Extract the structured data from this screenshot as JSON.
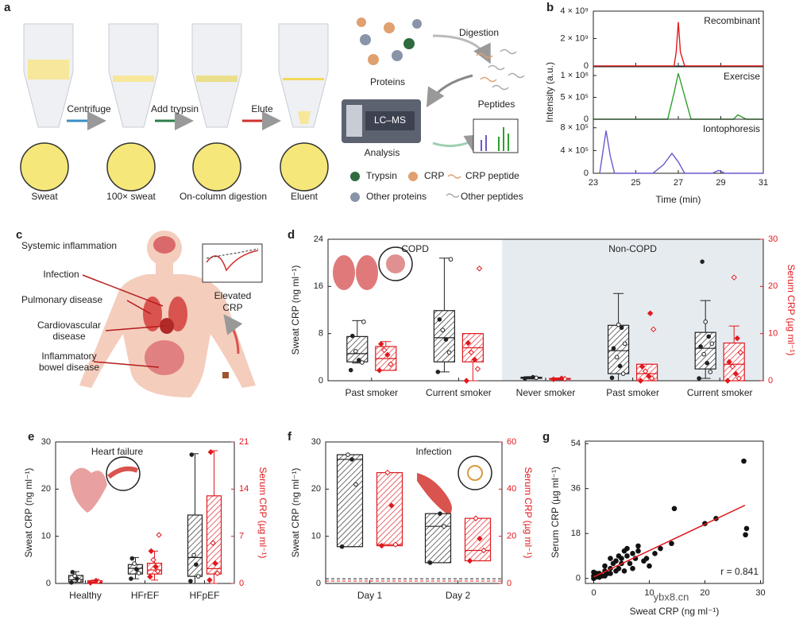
{
  "panel_a": {
    "label": "a",
    "steps": [
      "Centrifuge",
      "Add trypsin",
      "Elute"
    ],
    "samples": [
      "Sweat",
      "100× sweat",
      "On-column digestion",
      "Eluent"
    ],
    "cycle": {
      "digestion": "Digestion",
      "proteins": "Proteins",
      "peptides": "Peptides",
      "instrument": "LC–MS",
      "analysis": "Analysis"
    },
    "legend": [
      "Trypsin",
      "CRP",
      "CRP peptide",
      "Other proteins",
      "Other peptides"
    ]
  },
  "panel_c": {
    "label": "c",
    "title": "Systemic inflammation",
    "conditions": [
      [
        "Infection"
      ],
      [
        "Pulmonary disease"
      ],
      [
        "Cardiovascular",
        "disease"
      ],
      [
        "Inflammatory",
        "bowel disease"
      ]
    ],
    "annotation": [
      "Elevated",
      "CRP"
    ]
  },
  "chart_data": [
    {
      "panel": "b",
      "type": "line",
      "xlabel": "Time (min)",
      "ylabel": "Intensity (a.u.)",
      "xlim": [
        23,
        31
      ],
      "xticks": [
        23,
        25,
        27,
        29,
        31
      ],
      "subplots": [
        {
          "annotation": "Recombinant",
          "color": "#e41a1c",
          "ylim": [
            0,
            4000000000
          ],
          "yticks": [
            0,
            {
              "value": 2000000000,
              "label": "2 × 10⁹"
            },
            {
              "value": 4000000000,
              "label": "4 × 10⁹"
            }
          ],
          "x": [
            23,
            26.8,
            26.9,
            27.0,
            27.1,
            27.3,
            31
          ],
          "values": [
            0,
            0,
            1000000000,
            3200000000,
            1000000000,
            0,
            0
          ]
        },
        {
          "annotation": "Exercise",
          "color": "#2ca02c",
          "ylim": [
            0,
            1200000
          ],
          "yticks": [
            0,
            {
              "value": 500000,
              "label": "5 × 10⁵"
            },
            {
              "value": 1000000,
              "label": "1 × 10⁶"
            }
          ],
          "x": [
            23,
            26.5,
            26.8,
            27.0,
            27.2,
            27.6,
            29.6,
            29.8,
            30.2,
            31
          ],
          "values": [
            0,
            0,
            600000,
            1050000,
            700000,
            0,
            0,
            100000,
            0,
            0
          ]
        },
        {
          "annotation": "Iontophoresis",
          "color": "#6a5acd",
          "ylim": [
            0,
            950000
          ],
          "yticks": [
            0,
            {
              "value": 400000,
              "label": "4 × 10⁵"
            },
            {
              "value": 800000,
              "label": "8 × 10⁵"
            }
          ],
          "x": [
            23.3,
            23.5,
            23.6,
            23.8,
            24.0,
            25.8,
            26.3,
            26.7,
            27.0,
            27.3,
            28.6,
            28.9,
            29.2,
            31
          ],
          "values": [
            0,
            500000,
            750000,
            300000,
            0,
            0,
            150000,
            350000,
            200000,
            0,
            0,
            50000,
            0,
            0
          ]
        }
      ]
    },
    {
      "panel": "d",
      "type": "box",
      "ylabel": "Sweat CRP (ng ml⁻¹)",
      "y2label": "Serum CRP (µg ml⁻¹)",
      "ylim": [
        0,
        24
      ],
      "yticks": [
        0,
        8,
        16,
        24
      ],
      "y2lim": [
        0,
        30
      ],
      "y2ticks": [
        0,
        10,
        20,
        30
      ],
      "categories": [
        "Past smoker",
        "Current smoker",
        "Never smoker",
        "Past smoker",
        "Current smoker"
      ],
      "groups": [
        {
          "label": "COPD",
          "first": 0,
          "last": 1
        },
        {
          "label": "Non-COPD",
          "first": 2,
          "last": 4,
          "shaded": true
        }
      ],
      "series": [
        {
          "color": "#222222",
          "marker": "circle",
          "boxes": [
            {
              "min": 3.0,
              "q1": 3.2,
              "median": 4.6,
              "q3": 7.5,
              "max": 10.2,
              "points": [
                1.8,
                3.1,
                3.5,
                5.0,
                7.6,
                10.0
              ]
            },
            {
              "min": 1.5,
              "q1": 3.2,
              "median": 7.3,
              "q3": 11.9,
              "max": 20.8,
              "points": [
                1.5,
                4.8,
                7.0,
                8.6,
                10.4,
                20.6
              ]
            },
            {
              "min": 0.3,
              "q1": 0.4,
              "median": 0.5,
              "q3": 0.6,
              "max": 0.7,
              "points": [
                0.4,
                0.5,
                0.6
              ]
            },
            {
              "min": 0,
              "q1": 1.2,
              "median": 5.1,
              "q3": 9.4,
              "max": 14.8,
              "points": [
                0.5,
                1.2,
                2.5,
                4.0,
                5.5,
                6.3,
                9.0,
                9.5
              ]
            },
            {
              "min": 0.4,
              "q1": 2.0,
              "median": 5.5,
              "q3": 8.2,
              "max": 13.6,
              "points": [
                0.4,
                1.5,
                3.0,
                4.5,
                5.8,
                6.3,
                7.5,
                10.0,
                20.2
              ]
            }
          ]
        },
        {
          "color": "#e0191e",
          "axis": "y2",
          "marker": "diamond",
          "boxes": [
            {
              "min": 2.2,
              "q1": 2.2,
              "median": 4.7,
              "q3": 7.25,
              "max": 8.3,
              "points": [
                2.2,
                3.5,
                5.5,
                6.5,
                7.8
              ]
            },
            {
              "min": 0,
              "q1": 4,
              "median": 7,
              "q3": 10,
              "max": 10,
              "points": [
                0,
                2.5,
                4.5,
                6,
                8,
                23.8
              ]
            },
            {
              "min": 0.2,
              "q1": 0.3,
              "median": 0.4,
              "q3": 0.5,
              "max": 0.6,
              "points": [
                0.3,
                0.4,
                0.5
              ]
            },
            {
              "min": 0,
              "q1": 0,
              "median": 1.5,
              "q3": 3.5,
              "max": 3.5,
              "points": [
                0,
                0.5,
                1,
                2,
                3,
                10.9,
                14.3
              ]
            },
            {
              "min": 0,
              "q1": 0,
              "median": 3.5,
              "q3": 8,
              "max": 11.6,
              "points": [
                0,
                0.5,
                1.5,
                3,
                4,
                6,
                9,
                21.9
              ]
            }
          ]
        }
      ]
    },
    {
      "panel": "e",
      "type": "box",
      "annotation": "Heart failure",
      "ylabel": "Sweat CRP (ng ml⁻¹)",
      "y2label": "Serum CRP (µg ml⁻¹)",
      "ylim": [
        0,
        30
      ],
      "yticks": [
        0,
        10,
        20,
        30
      ],
      "y2lim": [
        0,
        21
      ],
      "y2ticks": [
        0,
        7,
        14,
        21
      ],
      "categories": [
        "Healthy",
        "HFrEF",
        "HFpEF"
      ],
      "series": [
        {
          "color": "#222222",
          "marker": "circle",
          "boxes": [
            {
              "min": 0,
              "q1": 0.3,
              "median": 0.8,
              "q3": 1.7,
              "max": 2.5,
              "points": [
                0.2,
                0.6,
                1.0,
                1.6,
                2.4
              ]
            },
            {
              "min": 1.0,
              "q1": 2.0,
              "median": 3.2,
              "q3": 4.0,
              "max": 5.5,
              "points": [
                1.0,
                2.2,
                3.0,
                4.2,
                5.3
              ]
            },
            {
              "min": 0,
              "q1": 1.5,
              "median": 5.5,
              "q3": 14.5,
              "max": 27.5,
              "points": [
                0.5,
                1.5,
                4,
                6,
                27.3
              ]
            }
          ]
        },
        {
          "color": "#e0191e",
          "axis": "y2",
          "marker": "diamond",
          "boxes": [
            {
              "min": 0,
              "q1": 0.1,
              "median": 0.2,
              "q3": 0.4,
              "max": 0.5,
              "points": [
                0.1,
                0.3,
                0.4
              ]
            },
            {
              "min": 0.5,
              "q1": 1.4,
              "median": 2.0,
              "q3": 3.0,
              "max": 4.8,
              "points": [
                1.0,
                1.8,
                2.5,
                3.5,
                4.8,
                7.2
              ]
            },
            {
              "min": 0,
              "q1": 1.4,
              "median": 2.2,
              "q3": 13,
              "max": 19.7,
              "points": [
                0.5,
                1.5,
                3.0,
                6.0,
                19.5
              ]
            }
          ]
        }
      ]
    },
    {
      "panel": "f",
      "type": "box",
      "annotation": "Infection",
      "ylabel": "Sweat CRP (ng ml⁻¹)",
      "y2label": "Serum CRP (µg ml⁻¹)",
      "ylim": [
        0,
        30
      ],
      "yticks": [
        0,
        10,
        20,
        30
      ],
      "y2lim": [
        0,
        60
      ],
      "y2ticks": [
        0,
        20,
        40,
        60
      ],
      "categories": [
        "Day 1",
        "Day 2"
      ],
      "reference_lines": [
        {
          "value": 1,
          "color": "#222222"
        },
        {
          "value": 1,
          "axis": "y2",
          "color": "#e0191e"
        }
      ],
      "series": [
        {
          "color": "#222222",
          "marker": "circle",
          "boxes": [
            {
              "min": 7.8,
              "q1": 7.8,
              "median": 26.3,
              "q3": 27.3,
              "max": 27.3,
              "points": [
                7.8,
                21,
                26.3,
                27.3
              ]
            },
            {
              "min": 4.4,
              "q1": 4.4,
              "median": 12.1,
              "q3": 14.8,
              "max": 14.8,
              "points": [
                4.4,
                12.1,
                14.8
              ]
            }
          ]
        },
        {
          "color": "#e0191e",
          "axis": "y2",
          "marker": "diamond",
          "boxes": [
            {
              "min": 16,
              "q1": 16,
              "median": 16.5,
              "q3": 47,
              "max": 47,
              "points": [
                16,
                16.5,
                33,
                47
              ]
            },
            {
              "min": 9.6,
              "q1": 9.6,
              "median": 14,
              "q3": 27.6,
              "max": 27.6,
              "points": [
                9.6,
                14,
                19,
                27.6
              ]
            }
          ]
        }
      ]
    },
    {
      "panel": "g",
      "type": "scatter",
      "xlabel": "Sweat CRP (ng ml⁻¹)",
      "ylabel": "Serum CRP (µg ml⁻¹)",
      "annotation": "r = 0.841",
      "xlim": [
        -1.5,
        30.5
      ],
      "xticks": [
        0,
        10,
        20,
        30
      ],
      "ylim": [
        -2,
        55
      ],
      "yticks": [
        0,
        18,
        36,
        54
      ],
      "color": "#111111",
      "x": [
        27,
        27.5,
        27.3,
        22,
        20,
        14.5,
        14,
        12,
        11,
        10,
        9.5,
        9,
        8,
        8,
        7.5,
        7,
        7,
        6.5,
        6,
        6,
        5.5,
        5,
        5,
        4.5,
        4.5,
        4,
        4,
        3.5,
        3,
        3,
        2.5,
        2,
        2,
        1.5,
        1,
        1,
        0.5,
        0.5,
        0.3,
        0,
        0,
        0,
        2,
        3,
        5.5
      ],
      "values": [
        47,
        20,
        17.5,
        24,
        22,
        28,
        14,
        12,
        10,
        5,
        8,
        7,
        11,
        13,
        8,
        10,
        4,
        6,
        12,
        9,
        11,
        8,
        6,
        9,
        4,
        7,
        3,
        6,
        4,
        8,
        2,
        3,
        5,
        1,
        2,
        0.5,
        1,
        2,
        0.5,
        0,
        1,
        2.5,
        1,
        2,
        3
      ],
      "fit": {
        "color": "#e0191e",
        "x": [
          0,
          27.2
        ],
        "values": [
          0.6,
          29.3
        ]
      }
    },
    {
      "watermark": "ybx8.cn"
    }
  ]
}
